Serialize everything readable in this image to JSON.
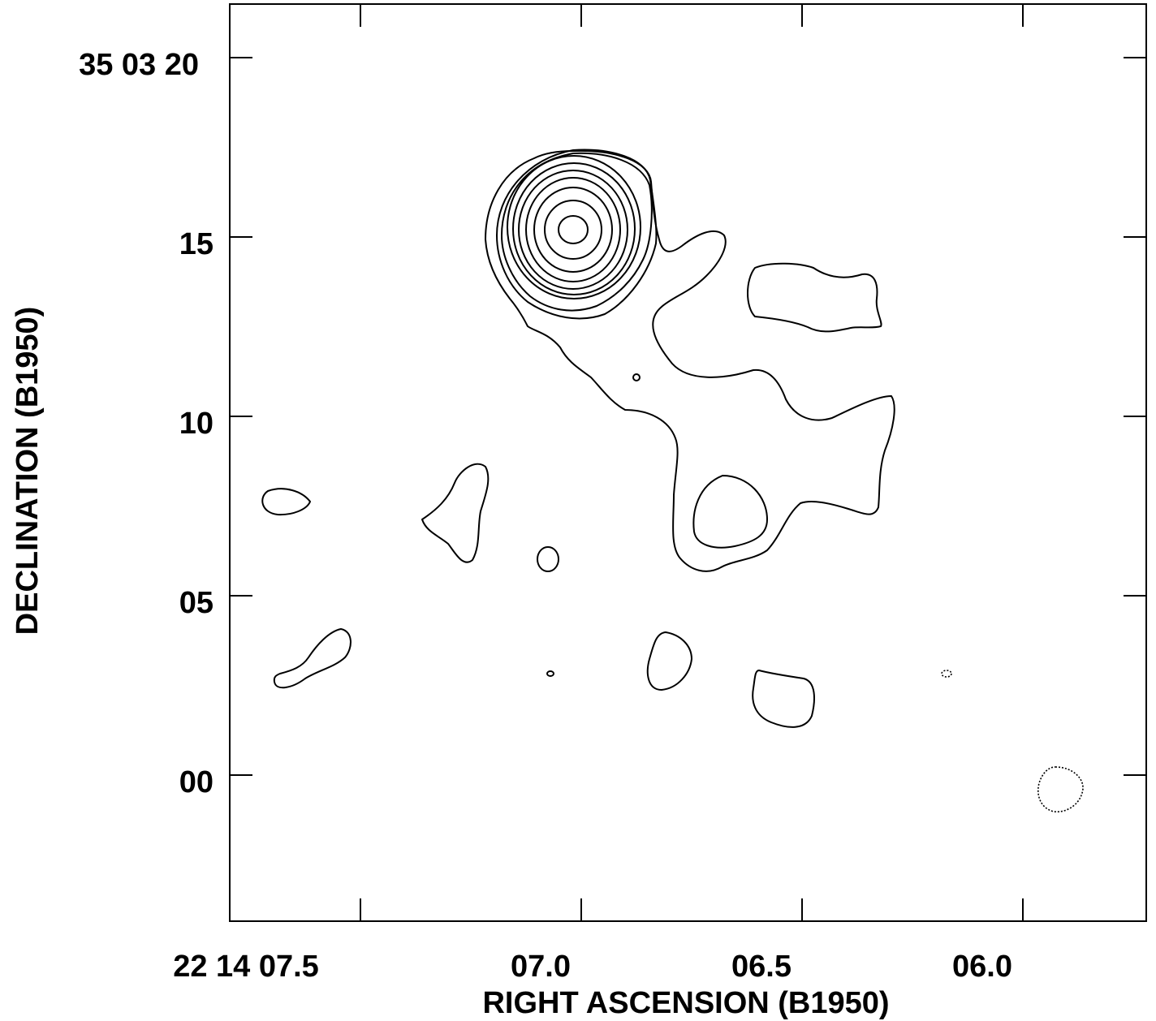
{
  "chart_data": {
    "type": "contour",
    "xlabel": "RIGHT ASCENSION (B1950)",
    "ylabel": "DECLINATION (B1950)",
    "x_axis": {
      "ticks": [
        {
          "value": 7.5,
          "label": "22 14 07.5"
        },
        {
          "value": 7.0,
          "label": "07.0"
        },
        {
          "value": 6.5,
          "label": "06.5"
        },
        {
          "value": 6.0,
          "label": "06.0"
        }
      ],
      "minor_ticks": [
        7.25,
        7.0,
        6.5,
        6.0
      ],
      "range_seconds": [
        7.8,
        5.72
      ],
      "direction": "right-to-left (RA decreasing)"
    },
    "y_axis": {
      "ticks": [
        {
          "value": 20,
          "label": "35 03 20"
        },
        {
          "value": 15,
          "label": "15"
        },
        {
          "value": 10,
          "label": "10"
        },
        {
          "value": 5,
          "label": "05"
        },
        {
          "value": 0,
          "label": "00"
        }
      ],
      "range_arcsec": [
        -4,
        21.5
      ]
    },
    "peak": {
      "ra_sec": 6.98,
      "dec_arcsec": 15.2
    },
    "contour_levels_count": 10,
    "features": [
      {
        "kind": "peak-source",
        "ra_sec": 6.98,
        "dec_arcsec": 15.2,
        "levels": 10
      },
      {
        "kind": "extended-emission",
        "description": "single lowest-level contour extending south-east from peak"
      },
      {
        "kind": "negative-contour",
        "ra_sec": 5.88,
        "dec_arcsec": -0.3
      }
    ]
  }
}
